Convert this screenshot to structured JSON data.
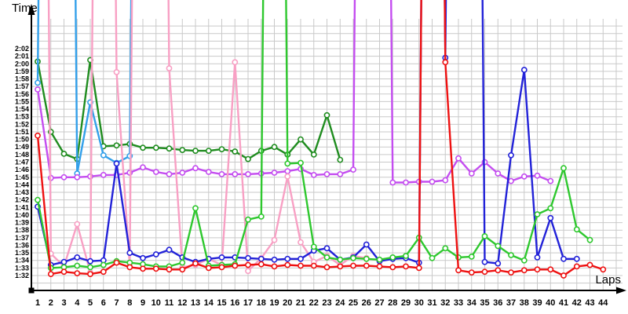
{
  "chart_data": {
    "type": "line",
    "title": "",
    "xlabel": "Laps",
    "ylabel": "Time",
    "grid": true,
    "legend_position": "none",
    "x": [
      1,
      2,
      3,
      4,
      5,
      6,
      7,
      8,
      9,
      10,
      11,
      12,
      13,
      14,
      15,
      16,
      17,
      18,
      19,
      20,
      21,
      22,
      23,
      24,
      25,
      26,
      27,
      28,
      29,
      30,
      31,
      32,
      33,
      34,
      35,
      36,
      37,
      38,
      39,
      40,
      41,
      42,
      43,
      44
    ],
    "y_axis": {
      "unit": "minutes:seconds",
      "tick_values": [
        92,
        93,
        94,
        95,
        96,
        97,
        98,
        99,
        100,
        101,
        102,
        103,
        104,
        105,
        106,
        107,
        108,
        109,
        110,
        111,
        112,
        113,
        114,
        115,
        116,
        117,
        118,
        119,
        120,
        121,
        122
      ],
      "tick_labels": [
        "1:32",
        "1:33",
        "1:34",
        "1:35",
        "1:36",
        "1:37",
        "1:38",
        "1:39",
        "1:40",
        "1:41",
        "1:42",
        "1:43",
        "1:44",
        "1:45",
        "1:46",
        "1:47",
        "1:48",
        "1:49",
        "1:50",
        "1:51",
        "1:52",
        "1:53",
        "1:54",
        "1:55",
        "1:56",
        "1:57",
        "1:58",
        "1:59",
        "2:00",
        "2:01",
        "2:02"
      ],
      "ylim_seconds": [
        90,
        126
      ]
    },
    "offscale_note": "values of 300 represent laps whose line spikes off the top of the chart (no visible marker)",
    "offscale_value": 300,
    "series": [
      {
        "name": "dark-green",
        "color": "#1f8c1f",
        "values": [
          120.3,
          111.0,
          108.1,
          107.4,
          120.5,
          109.1,
          109.2,
          109.4,
          108.9,
          108.9,
          108.8,
          108.6,
          108.5,
          108.5,
          108.7,
          108.4,
          107.4,
          108.5,
          109.0,
          108.0,
          110.0,
          108.0,
          113.2,
          107.3
        ]
      },
      {
        "name": "light-blue",
        "color": "#33a0ea",
        "values": [
          117.5,
          300,
          300,
          105.5,
          114.9,
          107.9,
          106.9,
          107.8,
          300
        ]
      },
      {
        "name": "violet",
        "color": "#c44df0",
        "values": [
          116.6,
          104.9,
          105.0,
          105.0,
          105.1,
          105.3,
          105.3,
          105.6,
          106.3,
          105.7,
          105.4,
          105.6,
          106.2,
          105.7,
          105.4,
          105.4,
          105.4,
          105.5,
          105.6,
          105.8,
          106.1,
          105.3,
          105.4,
          105.4,
          106.0,
          300,
          300,
          104.3,
          104.3,
          104.4,
          104.4,
          104.6,
          107.5,
          105.5,
          107.0,
          105.5,
          104.5,
          105.1,
          105.2,
          104.5
        ]
      },
      {
        "name": "pink",
        "color": "#f8a0c4",
        "values": [
          300,
          94.9,
          93.2,
          98.8,
          92.4,
          300,
          118.9,
          93.2,
          300,
          300,
          119.4,
          93.1,
          93.4,
          94.2,
          93.4,
          120.2,
          92.6,
          94.3,
          96.7,
          105.1,
          96.4,
          93.8,
          94.6,
          93.4,
          94.6,
          94.3
        ]
      },
      {
        "name": "blue",
        "color": "#2222d8",
        "values": [
          101.1,
          93.4,
          93.8,
          94.4,
          93.9,
          94.0,
          106.8,
          95.0,
          94.3,
          94.8,
          95.4,
          94.4,
          93.8,
          94.2,
          94.4,
          94.4,
          94.3,
          94.2,
          94.1,
          94.2,
          94.2,
          95.3,
          95.6,
          94.1,
          94.4,
          96.1,
          93.9,
          94.2,
          94.3,
          93.7,
          300,
          120.8,
          300,
          300,
          93.8,
          93.6,
          107.9,
          119.2,
          94.4,
          99.6,
          94.2,
          94.2
        ]
      },
      {
        "name": "green",
        "color": "#2ec82e",
        "values": [
          102.0,
          93.0,
          93.1,
          93.3,
          93.1,
          93.4,
          93.9,
          93.7,
          93.5,
          93.2,
          93.2,
          93.7,
          100.9,
          93.3,
          93.4,
          93.5,
          99.4,
          99.8,
          300,
          106.8,
          106.9,
          95.8,
          94.4,
          94.1,
          94.3,
          94.2,
          94.1,
          94.4,
          94.6,
          97.0,
          94.3,
          95.6,
          94.4,
          94.5,
          97.2,
          95.9,
          94.7,
          94.0,
          100.1,
          100.9,
          106.2,
          98.1,
          96.7
        ]
      },
      {
        "name": "red",
        "color": "#ee1111",
        "values": [
          110.5,
          92.2,
          92.5,
          92.3,
          92.2,
          92.5,
          93.7,
          93.1,
          92.9,
          92.9,
          92.8,
          92.8,
          93.6,
          93.0,
          93.1,
          93.3,
          93.4,
          93.5,
          93.2,
          93.4,
          93.3,
          93.3,
          93.1,
          93.2,
          93.3,
          93.3,
          93.2,
          93.1,
          93.2,
          93.0,
          300,
          120.2,
          92.7,
          92.4,
          92.5,
          92.7,
          92.4,
          92.7,
          92.8,
          92.8,
          92.0,
          93.2,
          93.4,
          92.8
        ]
      }
    ]
  }
}
